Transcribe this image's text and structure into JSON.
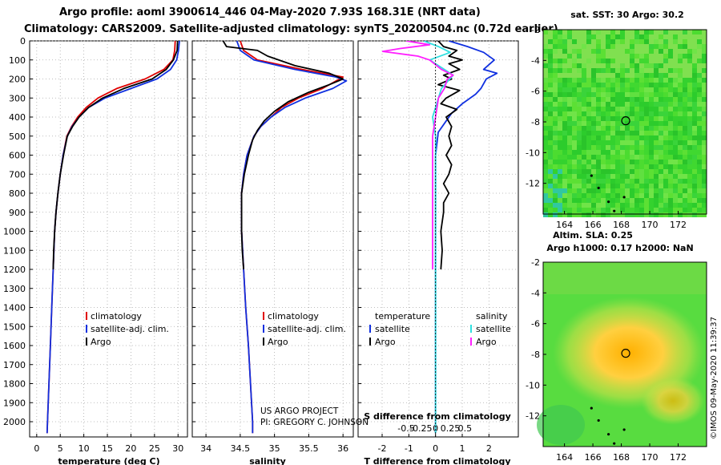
{
  "title_line1": "Argo profile: aoml 3900614_446 04-May-2020 7.93S 168.31E (NRT data)",
  "title_line2": "Climatology: CARS2009. Satellite-adjusted climatology: synTS_20200504.nc (0.72d earlier)",
  "colors": {
    "climatology": "#e00000",
    "satellite": "#1030e0",
    "argo": "#000000",
    "argo_sal": "#ff20ff",
    "sat_sal": "#30e0e0"
  },
  "depth_ticks": [
    0,
    100,
    200,
    300,
    400,
    500,
    600,
    700,
    800,
    900,
    1000,
    1100,
    1200,
    1300,
    1400,
    1500,
    1600,
    1700,
    1800,
    1900,
    2000
  ],
  "chart_data": [
    {
      "type": "line",
      "id": "temperature",
      "xlabel": "temperature (deg C)",
      "ylabel": "depth",
      "xlim": [
        -1.5,
        32
      ],
      "ylim": [
        2080,
        0
      ],
      "xticks": [
        0,
        5,
        10,
        15,
        20,
        25,
        30
      ],
      "xtick_labels": [
        "0",
        "5",
        "10",
        "15",
        "20",
        "25",
        "30"
      ],
      "legend": {
        "items": [
          "climatology",
          "satellite-adj. clim.",
          "Argo"
        ]
      },
      "series": [
        {
          "name": "climatology",
          "color_key": "climatology",
          "points": [
            [
              29.4,
              0
            ],
            [
              29.3,
              50
            ],
            [
              28.9,
              100
            ],
            [
              27.0,
              150
            ],
            [
              23.0,
              200
            ],
            [
              17.0,
              250
            ],
            [
              13.0,
              300
            ],
            [
              10.5,
              350
            ],
            [
              8.7,
              400
            ],
            [
              7.4,
              450
            ],
            [
              6.4,
              500
            ],
            [
              5.6,
              600
            ],
            [
              5.0,
              700
            ],
            [
              4.5,
              800
            ],
            [
              4.1,
              900
            ],
            [
              3.8,
              1000
            ],
            [
              3.5,
              1200
            ],
            [
              3.2,
              1400
            ],
            [
              2.9,
              1600
            ],
            [
              2.6,
              1800
            ],
            [
              2.3,
              2000
            ],
            [
              2.2,
              2060
            ]
          ]
        },
        {
          "name": "satellite-adj. clim.",
          "color_key": "satellite",
          "points": [
            [
              30.3,
              0
            ],
            [
              30.1,
              50
            ],
            [
              29.7,
              100
            ],
            [
              28.4,
              150
            ],
            [
              25.5,
              200
            ],
            [
              20.0,
              250
            ],
            [
              14.5,
              300
            ],
            [
              11.0,
              350
            ],
            [
              9.0,
              400
            ],
            [
              7.5,
              450
            ],
            [
              6.5,
              500
            ],
            [
              5.6,
              600
            ],
            [
              5.0,
              700
            ],
            [
              4.5,
              800
            ],
            [
              4.1,
              900
            ],
            [
              3.8,
              1000
            ],
            [
              3.5,
              1200
            ],
            [
              3.2,
              1400
            ],
            [
              2.9,
              1600
            ],
            [
              2.6,
              1800
            ],
            [
              2.3,
              2000
            ],
            [
              2.2,
              2060
            ]
          ]
        },
        {
          "name": "Argo",
          "color_key": "argo",
          "points": [
            [
              29.9,
              0
            ],
            [
              29.8,
              50
            ],
            [
              29.0,
              100
            ],
            [
              27.5,
              150
            ],
            [
              24.5,
              200
            ],
            [
              18.5,
              250
            ],
            [
              14.0,
              300
            ],
            [
              11.0,
              350
            ],
            [
              9.0,
              400
            ],
            [
              7.6,
              450
            ],
            [
              6.5,
              500
            ],
            [
              5.7,
              600
            ],
            [
              5.0,
              700
            ],
            [
              4.5,
              800
            ],
            [
              4.1,
              900
            ],
            [
              3.8,
              1000
            ],
            [
              3.6,
              1100
            ],
            [
              3.5,
              1200
            ]
          ]
        }
      ]
    },
    {
      "type": "line",
      "id": "salinity",
      "xlabel": "salinity",
      "ylabel": "depth",
      "xlim": [
        33.8,
        36.15
      ],
      "ylim": [
        2080,
        0
      ],
      "xticks": [
        34,
        34.5,
        35,
        35.5,
        36
      ],
      "xtick_labels": [
        "34",
        "34.5",
        "35",
        "35.5",
        "36"
      ],
      "legend": {
        "items": [
          "climatology",
          "satellite-adj. clim.",
          "Argo"
        ]
      },
      "series": [
        {
          "name": "climatology",
          "color_key": "climatology",
          "points": [
            [
              34.5,
              0
            ],
            [
              34.55,
              50
            ],
            [
              34.75,
              100
            ],
            [
              35.4,
              150
            ],
            [
              36.0,
              190
            ],
            [
              35.9,
              210
            ],
            [
              35.7,
              250
            ],
            [
              35.35,
              300
            ],
            [
              35.1,
              350
            ],
            [
              34.95,
              400
            ],
            [
              34.8,
              450
            ],
            [
              34.7,
              500
            ],
            [
              34.6,
              600
            ],
            [
              34.55,
              700
            ],
            [
              34.52,
              800
            ],
            [
              34.52,
              1000
            ],
            [
              34.55,
              1200
            ],
            [
              34.58,
              1400
            ],
            [
              34.62,
              1600
            ],
            [
              34.65,
              1800
            ],
            [
              34.68,
              2000
            ],
            [
              34.68,
              2060
            ]
          ]
        },
        {
          "name": "satellite-adj. clim.",
          "color_key": "satellite",
          "points": [
            [
              34.45,
              0
            ],
            [
              34.5,
              50
            ],
            [
              34.7,
              100
            ],
            [
              35.3,
              150
            ],
            [
              35.9,
              190
            ],
            [
              36.05,
              210
            ],
            [
              35.85,
              250
            ],
            [
              35.45,
              300
            ],
            [
              35.15,
              350
            ],
            [
              34.95,
              400
            ],
            [
              34.8,
              450
            ],
            [
              34.7,
              500
            ],
            [
              34.6,
              600
            ],
            [
              34.55,
              700
            ],
            [
              34.52,
              800
            ],
            [
              34.52,
              1000
            ],
            [
              34.55,
              1200
            ],
            [
              34.58,
              1400
            ],
            [
              34.62,
              1600
            ],
            [
              34.65,
              1800
            ],
            [
              34.68,
              2000
            ],
            [
              34.68,
              2060
            ]
          ]
        },
        {
          "name": "Argo",
          "color_key": "argo",
          "points": [
            [
              34.25,
              0
            ],
            [
              34.3,
              30
            ],
            [
              34.75,
              50
            ],
            [
              34.9,
              80
            ],
            [
              35.3,
              130
            ],
            [
              35.8,
              170
            ],
            [
              36.0,
              200
            ],
            [
              35.8,
              230
            ],
            [
              35.5,
              270
            ],
            [
              35.2,
              320
            ],
            [
              35.0,
              370
            ],
            [
              34.85,
              420
            ],
            [
              34.75,
              470
            ],
            [
              34.68,
              520
            ],
            [
              34.62,
              600
            ],
            [
              34.56,
              700
            ],
            [
              34.52,
              800
            ],
            [
              34.52,
              1000
            ],
            [
              34.53,
              1100
            ],
            [
              34.55,
              1200
            ]
          ]
        }
      ]
    },
    {
      "type": "line",
      "id": "difference",
      "xlabel": "T difference from climatology",
      "xlabel_top": "S difference from climatology",
      "ylabel": "depth",
      "xlim": [
        -2.9,
        3.1
      ],
      "ylim": [
        2080,
        0
      ],
      "xticks": [
        -2,
        -1,
        0,
        1,
        2
      ],
      "xtick_labels": [
        "-2",
        "-1",
        "0",
        "1",
        "2"
      ],
      "s_ticks": [
        -0.5,
        -0.25,
        0,
        0.25,
        0.5
      ],
      "s_tick_labels": [
        "-0.5",
        "-0.25",
        "0",
        "0.25",
        "0.5"
      ],
      "legend": {
        "temperature_title": "temperature",
        "salinity_title": "salinity",
        "satellite": "satellite",
        "argo": "Argo"
      },
      "series": [
        {
          "name": "temperature satellite",
          "color_key": "satellite",
          "points": [
            [
              0.5,
              0
            ],
            [
              1.2,
              30
            ],
            [
              1.8,
              60
            ],
            [
              2.2,
              100
            ],
            [
              1.8,
              150
            ],
            [
              2.3,
              170
            ],
            [
              1.9,
              200
            ],
            [
              1.7,
              250
            ],
            [
              1.5,
              280
            ],
            [
              1.0,
              330
            ],
            [
              0.6,
              380
            ],
            [
              0.4,
              420
            ],
            [
              0.1,
              480
            ],
            [
              0,
              600
            ],
            [
              0,
              2060
            ]
          ]
        },
        {
          "name": "temperature Argo",
          "color_key": "argo",
          "points": [
            [
              0.1,
              0
            ],
            [
              0.3,
              30
            ],
            [
              0.8,
              50
            ],
            [
              0.5,
              80
            ],
            [
              1.0,
              100
            ],
            [
              0.5,
              120
            ],
            [
              0.9,
              150
            ],
            [
              0.3,
              180
            ],
            [
              0.6,
              200
            ],
            [
              0.1,
              230
            ],
            [
              0.9,
              260
            ],
            [
              0.4,
              300
            ],
            [
              0.2,
              330
            ],
            [
              0.8,
              360
            ],
            [
              0.4,
              400
            ],
            [
              0.6,
              450
            ],
            [
              0.5,
              500
            ],
            [
              0.6,
              550
            ],
            [
              0.4,
              600
            ],
            [
              0.6,
              650
            ],
            [
              0.5,
              700
            ],
            [
              0.3,
              750
            ],
            [
              0.5,
              800
            ],
            [
              0.3,
              850
            ],
            [
              0.3,
              900
            ],
            [
              0.2,
              1000
            ],
            [
              0.25,
              1100
            ],
            [
              0.2,
              1200
            ]
          ]
        },
        {
          "name": "salinity satellite",
          "color_key": "sat_sal",
          "points": [
            [
              -0.2,
              0
            ],
            [
              0.05,
              30
            ],
            [
              0.25,
              60
            ],
            [
              -0.1,
              100
            ],
            [
              0.3,
              180
            ],
            [
              0.1,
              250
            ],
            [
              0.05,
              300
            ],
            [
              -0.05,
              400
            ],
            [
              0,
              500
            ],
            [
              0,
              2060
            ]
          ]
        },
        {
          "name": "salinity Argo",
          "color_key": "argo_sal",
          "points": [
            [
              -0.5,
              0
            ],
            [
              -0.1,
              20
            ],
            [
              -0.6,
              40
            ],
            [
              -0.9,
              55
            ],
            [
              -0.3,
              80
            ],
            [
              -0.1,
              100
            ],
            [
              0.1,
              150
            ],
            [
              0.3,
              180
            ],
            [
              0.2,
              200
            ],
            [
              0.15,
              250
            ],
            [
              0.05,
              300
            ],
            [
              0,
              400
            ],
            [
              -0.05,
              500
            ],
            [
              -0.05,
              700
            ],
            [
              -0.05,
              1000
            ],
            [
              -0.05,
              1200
            ]
          ]
        }
      ]
    },
    {
      "type": "heatmap",
      "id": "sst_map",
      "title": "sat. SST: 30 Argo: 30.2",
      "xlim": [
        162.5,
        174
      ],
      "ylim": [
        -14,
        -2
      ],
      "xticks": [
        164,
        166,
        168,
        170,
        172
      ],
      "xtick_labels": [
        "164",
        "166",
        "168",
        "170",
        "172"
      ],
      "yticks": [
        -2,
        -4,
        -6,
        -8,
        -10,
        -12
      ],
      "ytick_labels": [
        "-2",
        "-4",
        "-6",
        "-8",
        "-10",
        "-12"
      ],
      "marker": {
        "lon": 168.31,
        "lat": -7.93
      }
    },
    {
      "type": "heatmap",
      "id": "sla_map",
      "title": "Altim. SLA: 0.25",
      "title2": "Argo h1000: 0.17 h2000: NaN",
      "xlim": [
        162.5,
        174
      ],
      "ylim": [
        -14,
        -2
      ],
      "xticks": [
        164,
        166,
        168,
        170,
        172
      ],
      "xtick_labels": [
        "164",
        "166",
        "168",
        "170",
        "172"
      ],
      "yticks": [
        -2,
        -4,
        -6,
        -8,
        -10,
        -12
      ],
      "ytick_labels": [
        "-2",
        "-4",
        "-6",
        "-8",
        "-10",
        "-12"
      ],
      "marker": {
        "lon": 168.31,
        "lat": -7.93
      }
    }
  ],
  "credits": {
    "line1": "US ARGO PROJECT",
    "line2": "PI: GREGORY C. JOHNSON"
  },
  "stamp": "©IMOS 09-May-2020 11:39:37"
}
